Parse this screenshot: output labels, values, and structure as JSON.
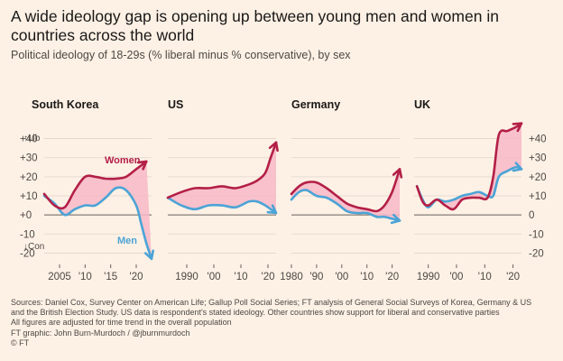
{
  "title": "A wide ideology gap is opening up between young men and women in countries across the world",
  "subtitle": "Political ideology of 18-29s (% liberal minus % conservative), by sex",
  "footer": {
    "sources_line1": "Sources: Daniel Cox, Survey Center on American Life; Gallup Poll Social Series; FT analysis of General Social Surveys of Korea, Germany & US",
    "sources_line2": "and the British Election Study. US data is respondent's stated ideology. Other countries show support for liberal and conservative parties",
    "note": "All figures are adjusted for time trend in the overall population",
    "graphic": "FT graphic: John Burn-Murdoch / @jburnmurdoch",
    "copyright": "© FT"
  },
  "colors": {
    "women": "#b31f47",
    "men": "#4ba3d6",
    "gap_fill": "#f7b8c8",
    "baseline": "#66605c",
    "grid": "#e0d5cb",
    "tick_text": "#4d4845",
    "background": "#fdf1e5"
  },
  "y_axis": {
    "ylim": [
      -25,
      45
    ],
    "ticks": [
      -20,
      -10,
      0,
      10,
      20,
      30,
      40
    ],
    "tick_labels_left": [
      "-20",
      "-10",
      "+0",
      "+10",
      "+20",
      "+30",
      "+40"
    ],
    "tick_labels_right": [
      "-20",
      "-10",
      "0",
      "+10",
      "+20",
      "+30",
      "+40"
    ],
    "lib_label": "↑Lib",
    "con_label": "↓Con"
  },
  "chart_data": [
    {
      "type": "line",
      "title": "South Korea",
      "xlim": [
        2002,
        2023
      ],
      "x_ticks": [
        2005,
        2010,
        2015,
        2020
      ],
      "x_tick_labels": [
        "2005",
        "'10",
        "'15",
        "'20"
      ],
      "series": [
        {
          "name": "Women",
          "x": [
            2002,
            2004,
            2006,
            2008,
            2010,
            2012,
            2014,
            2016,
            2018,
            2020,
            2022
          ],
          "y": [
            11,
            5,
            4,
            13,
            20,
            20,
            19,
            19,
            20,
            24,
            28
          ]
        },
        {
          "name": "Men",
          "x": [
            2002,
            2004,
            2006,
            2008,
            2010,
            2012,
            2014,
            2016,
            2018,
            2020,
            2021,
            2022,
            2023
          ],
          "y": [
            10,
            6,
            0,
            3,
            5,
            5,
            9,
            14,
            13,
            5,
            -5,
            -15,
            -23
          ]
        }
      ]
    },
    {
      "type": "line",
      "title": "US",
      "xlim": [
        1983,
        2023
      ],
      "x_ticks": [
        1990,
        2000,
        2010,
        2020
      ],
      "x_tick_labels": [
        "1990",
        "'00",
        "'10",
        "'20"
      ],
      "series": [
        {
          "name": "",
          "x": [
            1983,
            1988,
            1993,
            1998,
            2003,
            2008,
            2013,
            2016,
            2019,
            2021,
            2023
          ],
          "y": [
            9,
            12,
            14,
            14,
            15,
            14,
            16,
            18,
            22,
            30,
            38
          ]
        },
        {
          "name": "",
          "x": [
            1983,
            1988,
            1993,
            1998,
            2003,
            2008,
            2013,
            2016,
            2019,
            2021,
            2023
          ],
          "y": [
            9,
            5,
            3,
            5,
            5,
            4,
            7,
            7,
            5,
            3,
            1
          ]
        }
      ]
    },
    {
      "type": "line",
      "title": "Germany",
      "xlim": [
        1980,
        2023
      ],
      "x_ticks": [
        1980,
        1990,
        2000,
        2010,
        2020
      ],
      "x_tick_labels": [
        "1980",
        "'90",
        "'00",
        "'10",
        "'20"
      ],
      "series": [
        {
          "name": "",
          "x": [
            1980,
            1983,
            1986,
            1990,
            1994,
            1998,
            2002,
            2006,
            2010,
            2014,
            2017,
            2020,
            2023
          ],
          "y": [
            11,
            15,
            17,
            17,
            14,
            10,
            6,
            4,
            3,
            2,
            5,
            12,
            24
          ]
        },
        {
          "name": "",
          "x": [
            1980,
            1983,
            1986,
            1990,
            1994,
            1998,
            2002,
            2006,
            2010,
            2014,
            2017,
            2020,
            2023
          ],
          "y": [
            8,
            12,
            13,
            10,
            9,
            6,
            2,
            1,
            1,
            -1,
            -1,
            -2,
            -3
          ]
        }
      ]
    },
    {
      "type": "line",
      "title": "UK",
      "xlim": [
        1985,
        2023
      ],
      "x_ticks": [
        1990,
        2000,
        2010,
        2020
      ],
      "x_tick_labels": [
        "1990",
        "'00",
        "'10",
        "'20"
      ],
      "series": [
        {
          "name": "",
          "x": [
            1986,
            1988,
            1990,
            1993,
            1996,
            1999,
            2002,
            2005,
            2008,
            2011,
            2013,
            2015,
            2018,
            2021,
            2023
          ],
          "y": [
            15,
            7,
            5,
            8,
            5,
            3,
            8,
            9,
            9,
            9,
            20,
            42,
            44,
            46,
            48
          ]
        },
        {
          "name": "",
          "x": [
            1986,
            1988,
            1990,
            1993,
            1996,
            1999,
            2002,
            2005,
            2008,
            2011,
            2013,
            2015,
            2018,
            2021,
            2023
          ],
          "y": [
            15,
            8,
            4,
            8,
            7,
            8,
            10,
            11,
            12,
            10,
            10,
            20,
            23,
            25,
            24
          ]
        }
      ]
    }
  ],
  "series_labels": {
    "women": "Women",
    "men": "Men"
  }
}
